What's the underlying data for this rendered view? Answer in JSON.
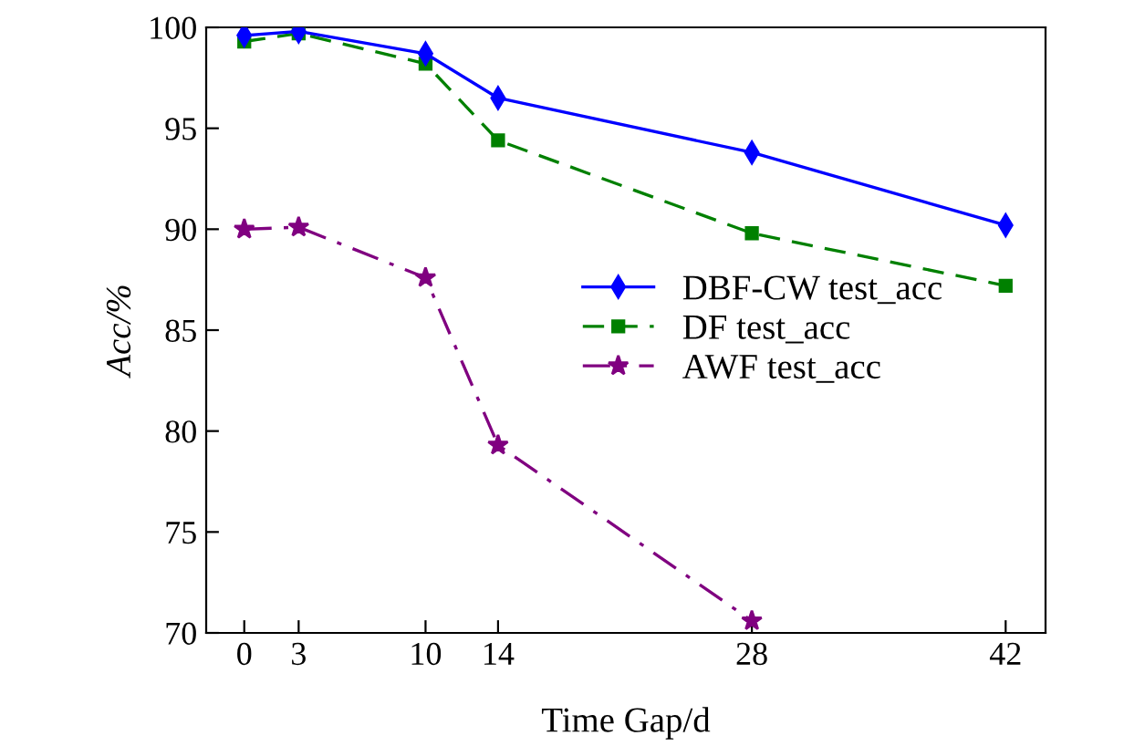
{
  "chart_data": {
    "type": "line",
    "xlabel": "Time Gap/d",
    "ylabel": "Acc/%",
    "x": [
      0,
      3,
      10,
      14,
      28,
      42
    ],
    "series": [
      {
        "name": "DBF-CW test_acc",
        "color": "#0000ff",
        "marker": "diamond",
        "line_style": "solid",
        "values": [
          99.6,
          99.8,
          98.7,
          96.5,
          93.8,
          90.2
        ]
      },
      {
        "name": "DF test_acc",
        "color": "#008000",
        "marker": "square",
        "line_style": "dashed",
        "values": [
          99.3,
          99.7,
          98.2,
          94.4,
          89.8,
          87.2
        ]
      },
      {
        "name": "AWF test_acc",
        "color": "#800080",
        "marker": "star",
        "line_style": "dashdot",
        "values": [
          90.0,
          90.1,
          87.6,
          79.3,
          70.6,
          null
        ]
      }
    ],
    "xlim": [
      -2.1,
      44.2
    ],
    "ylim": [
      70,
      100
    ],
    "xticks": [
      0,
      3,
      10,
      14,
      28,
      42
    ],
    "yticks": [
      70,
      75,
      80,
      85,
      90,
      95,
      100
    ],
    "grid": false,
    "legend": "right"
  }
}
